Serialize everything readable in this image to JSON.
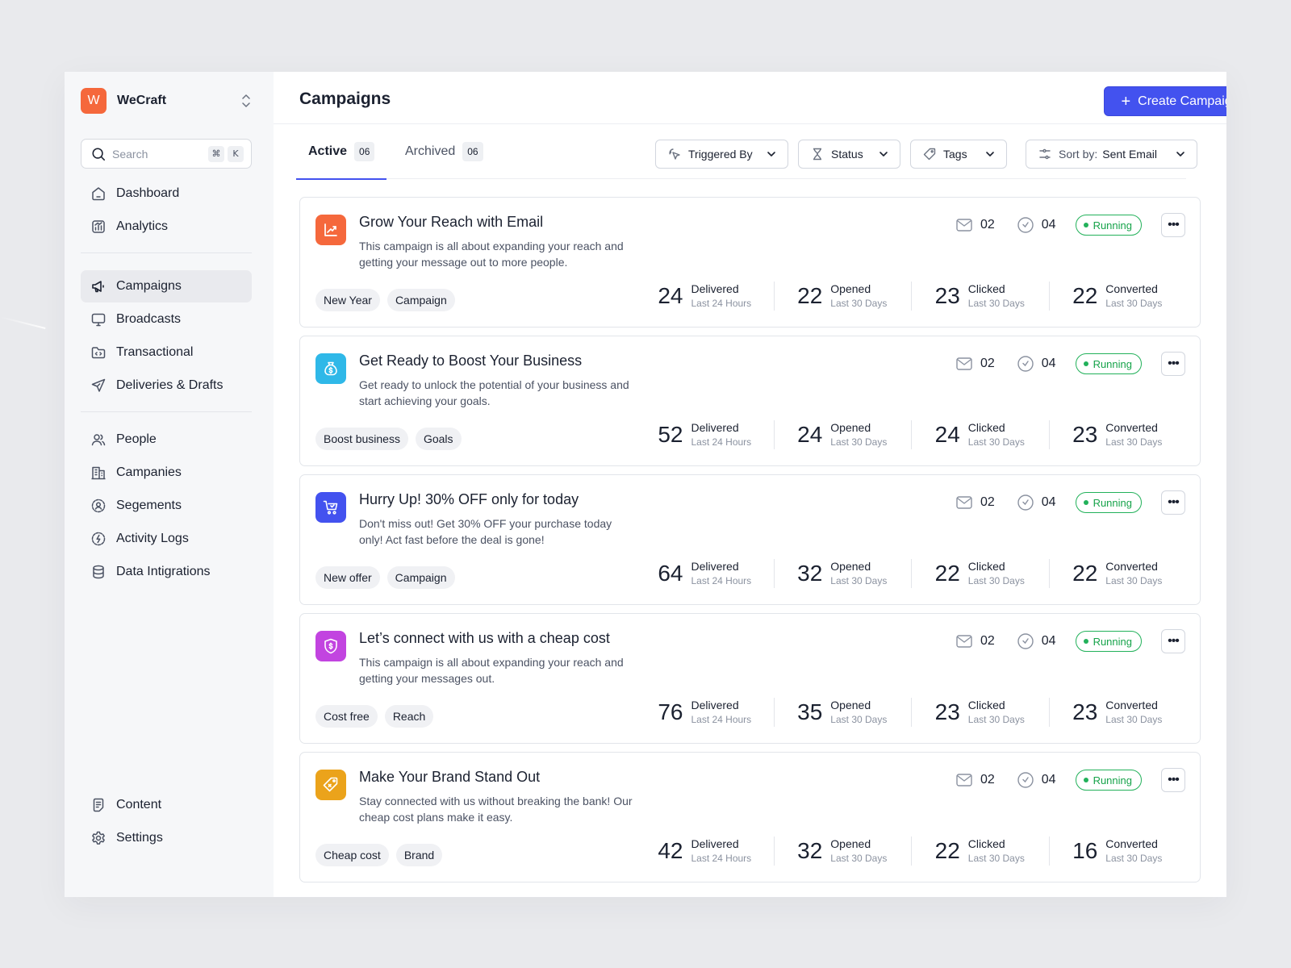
{
  "brand": {
    "initial": "W",
    "name": "WeCraft"
  },
  "search": {
    "placeholder": "Search",
    "key1": "⌘",
    "key2": "K"
  },
  "sidebar": {
    "group1": [
      "Dashboard",
      "Analytics"
    ],
    "group2": [
      "Campaigns",
      "Broadcasts",
      "Transactional",
      "Deliveries & Drafts"
    ],
    "group3": [
      "People",
      "Campanies",
      "Segements",
      "Activity Logs",
      "Data Intigrations"
    ],
    "bottom": [
      "Content",
      "Settings"
    ],
    "active": "Campaigns"
  },
  "header": {
    "title": "Campaigns",
    "create_label": "Create Campaign"
  },
  "tabs": [
    {
      "label": "Active",
      "count": "06"
    },
    {
      "label": "Archived",
      "count": "06"
    }
  ],
  "filters": {
    "triggered_by": "Triggered By",
    "status": "Status",
    "tags": "Tags",
    "sort_prefix": "Sort by:",
    "sort_value": "Sent Email"
  },
  "colors": {
    "accent": "#4352ef",
    "running": "#22b15a"
  },
  "campaigns": [
    {
      "title": "Grow Your Reach with Email",
      "desc": "This campaign is all about expanding your reach and getting your message out to more people.",
      "icon": "chart-up-icon",
      "color": "#f5683c",
      "tags": [
        "New Year",
        "Campaign"
      ],
      "emails": "02",
      "scheduled": "04",
      "status": "Running",
      "stats": [
        {
          "value": "24",
          "label": "Delivered",
          "sub": "Last 24 Hours"
        },
        {
          "value": "22",
          "label": "Opened",
          "sub": "Last 30 Days"
        },
        {
          "value": "23",
          "label": "Clicked",
          "sub": "Last 30 Days"
        },
        {
          "value": "22",
          "label": "Converted",
          "sub": "Last 30 Days"
        }
      ]
    },
    {
      "title": "Get Ready to Boost Your Business",
      "desc": "Get ready to unlock the potential of your business and start achieving your goals.",
      "icon": "money-bag-icon",
      "color": "#2fb8e8",
      "tags": [
        "Boost business",
        "Goals"
      ],
      "emails": "02",
      "scheduled": "04",
      "status": "Running",
      "stats": [
        {
          "value": "52",
          "label": "Delivered",
          "sub": "Last 24 Hours"
        },
        {
          "value": "24",
          "label": "Opened",
          "sub": "Last 30 Days"
        },
        {
          "value": "24",
          "label": "Clicked",
          "sub": "Last 30 Days"
        },
        {
          "value": "23",
          "label": "Converted",
          "sub": "Last 30 Days"
        }
      ]
    },
    {
      "title": "Hurry Up! 30% OFF only for today",
      "desc": "Don't miss out! Get 30% OFF your purchase today only! Act fast before the deal is gone!",
      "icon": "cart-icon",
      "color": "#4352ef",
      "tags": [
        "New offer",
        "Campaign"
      ],
      "emails": "02",
      "scheduled": "04",
      "status": "Running",
      "stats": [
        {
          "value": "64",
          "label": "Delivered",
          "sub": "Last 24 Hours"
        },
        {
          "value": "32",
          "label": "Opened",
          "sub": "Last 30 Days"
        },
        {
          "value": "22",
          "label": "Clicked",
          "sub": "Last 30 Days"
        },
        {
          "value": "22",
          "label": "Converted",
          "sub": "Last 30 Days"
        }
      ]
    },
    {
      "title": "Let’s connect with us with a cheap cost",
      "desc": "This campaign is all about expanding your reach and getting your messages out.",
      "icon": "shield-dollar-icon",
      "color": "#c244e0",
      "tags": [
        "Cost free",
        "Reach"
      ],
      "emails": "02",
      "scheduled": "04",
      "status": "Running",
      "stats": [
        {
          "value": "76",
          "label": "Delivered",
          "sub": "Last 24 Hours"
        },
        {
          "value": "35",
          "label": "Opened",
          "sub": "Last 30 Days"
        },
        {
          "value": "23",
          "label": "Clicked",
          "sub": "Last 30 Days"
        },
        {
          "value": "23",
          "label": "Converted",
          "sub": "Last 30 Days"
        }
      ]
    },
    {
      "title": "Make Your Brand Stand Out",
      "desc": "Stay connected with us without breaking the bank! Our cheap cost plans make it easy.",
      "icon": "price-tag-icon",
      "color": "#eba31b",
      "tags": [
        "Cheap cost",
        "Brand"
      ],
      "emails": "02",
      "scheduled": "04",
      "status": "Running",
      "stats": [
        {
          "value": "42",
          "label": "Delivered",
          "sub": "Last 24 Hours"
        },
        {
          "value": "32",
          "label": "Opened",
          "sub": "Last 30 Days"
        },
        {
          "value": "22",
          "label": "Clicked",
          "sub": "Last 30 Days"
        },
        {
          "value": "16",
          "label": "Converted",
          "sub": "Last 30 Days"
        }
      ]
    }
  ]
}
